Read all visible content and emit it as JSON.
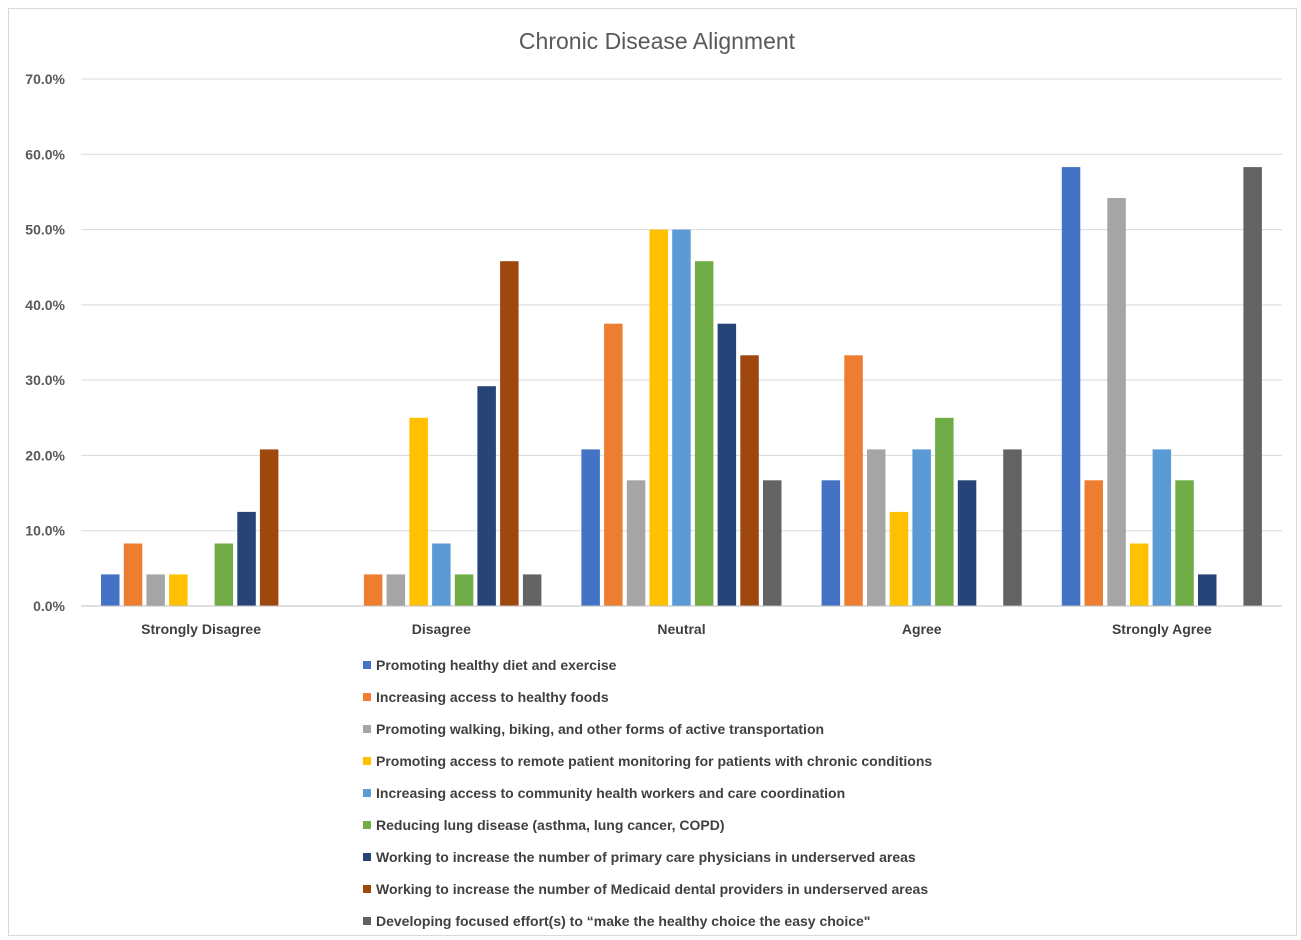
{
  "chart_data": {
    "type": "bar",
    "title": "Chronic Disease Alignment",
    "xlabel": "",
    "ylabel": "",
    "ylim": [
      0,
      70
    ],
    "yticks": [
      0,
      10,
      20,
      30,
      40,
      50,
      60,
      70
    ],
    "ytick_labels": [
      "0.0%",
      "10.0%",
      "20.0%",
      "30.0%",
      "40.0%",
      "50.0%",
      "60.0%",
      "70.0%"
    ],
    "grid": true,
    "legend_position": "bottom",
    "categories": [
      "Strongly Disagree",
      "Disagree",
      "Neutral",
      "Agree",
      "Strongly Agree"
    ],
    "series": [
      {
        "name": "Promoting healthy diet and exercise",
        "color": "#4472c4",
        "values": [
          4.2,
          0,
          20.8,
          16.7,
          58.3
        ]
      },
      {
        "name": "Increasing access to healthy foods",
        "color": "#ed7d31",
        "values": [
          8.3,
          4.2,
          37.5,
          33.3,
          16.7
        ]
      },
      {
        "name": "Promoting walking, biking, and other forms of active transportation",
        "color": "#a5a5a5",
        "values": [
          4.2,
          4.2,
          16.7,
          20.8,
          54.2
        ]
      },
      {
        "name": "Promoting access to remote patient monitoring for patients with chronic conditions",
        "color": "#ffc000",
        "values": [
          4.2,
          25.0,
          50.0,
          12.5,
          8.3
        ]
      },
      {
        "name": "Increasing access to community health workers and care coordination",
        "color": "#5b9bd5",
        "values": [
          0,
          8.3,
          50.0,
          20.8,
          20.8
        ]
      },
      {
        "name": "Reducing lung disease (asthma, lung cancer, COPD)",
        "color": "#70ad47",
        "values": [
          8.3,
          4.2,
          45.8,
          25.0,
          16.7
        ]
      },
      {
        "name": "Working to increase the number of primary care physicians in underserved areas",
        "color": "#264478",
        "values": [
          12.5,
          29.2,
          37.5,
          16.7,
          4.2
        ]
      },
      {
        "name": "Working to increase the number of Medicaid dental providers in underserved areas",
        "color": "#9e480e",
        "values": [
          20.8,
          45.8,
          33.3,
          0,
          0
        ]
      },
      {
        "name": "Developing focused effort(s) to “make the healthy choice the easy choice\"",
        "color": "#636363",
        "values": [
          0,
          4.2,
          16.7,
          20.8,
          58.3
        ]
      }
    ]
  }
}
